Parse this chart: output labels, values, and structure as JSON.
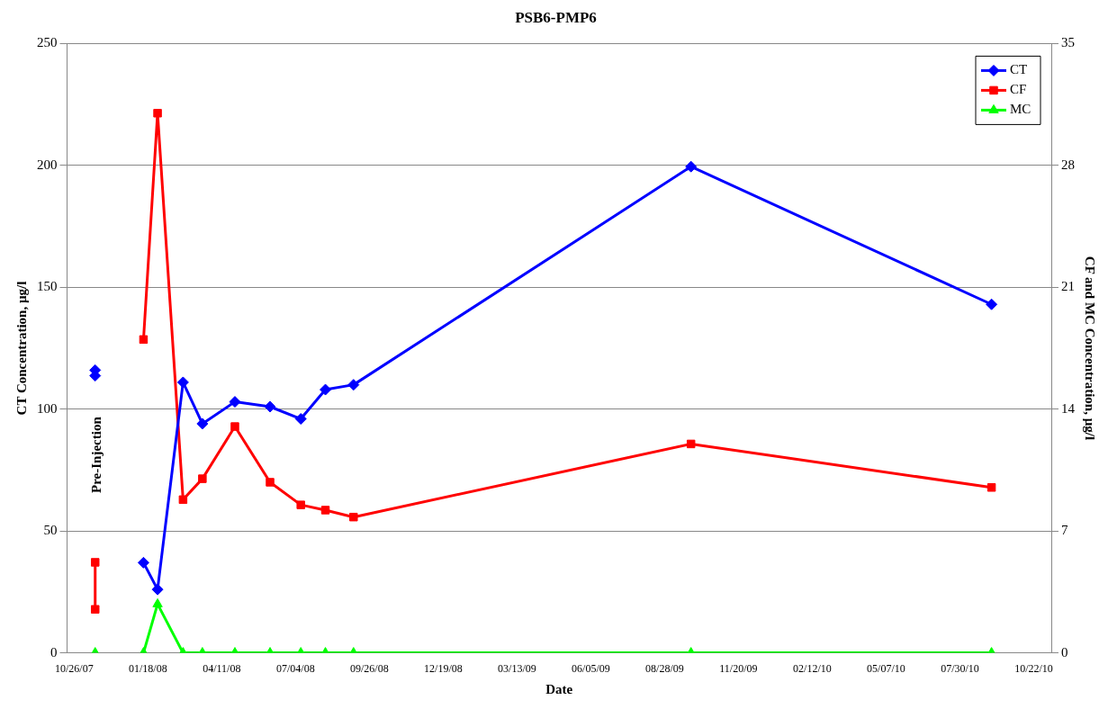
{
  "chart_data": {
    "type": "line",
    "title": "PSB6-PMP6",
    "xlabel": "Date",
    "ylabel": "CT Concentration, µg/l",
    "y2label": "CF and MC Concentration, µg/l",
    "xlim": [
      "2007-10-18",
      "2010-11-11"
    ],
    "xticks": [
      {
        "value": "2007-10-26",
        "label": "10/26/07"
      },
      {
        "value": "2008-01-18",
        "label": "01/18/08"
      },
      {
        "value": "2008-04-11",
        "label": "04/11/08"
      },
      {
        "value": "2008-07-04",
        "label": "07/04/08"
      },
      {
        "value": "2008-09-26",
        "label": "09/26/08"
      },
      {
        "value": "2008-12-19",
        "label": "12/19/08"
      },
      {
        "value": "2009-03-13",
        "label": "03/13/09"
      },
      {
        "value": "2009-06-05",
        "label": "06/05/09"
      },
      {
        "value": "2009-08-28",
        "label": "08/28/09"
      },
      {
        "value": "2009-11-20",
        "label": "11/20/09"
      },
      {
        "value": "2010-02-12",
        "label": "02/12/10"
      },
      {
        "value": "2010-05-07",
        "label": "05/07/10"
      },
      {
        "value": "2010-07-30",
        "label": "07/30/10"
      },
      {
        "value": "2010-10-22",
        "label": "10/22/10"
      }
    ],
    "ylim": [
      0,
      250
    ],
    "yticks": [
      0,
      50,
      100,
      150,
      200,
      250
    ],
    "y2lim": [
      0,
      35
    ],
    "y2ticks": [
      0,
      7,
      14,
      21,
      28,
      35
    ],
    "grid": "y",
    "legend": "top right",
    "line_style": "solid",
    "annotations": [
      "Pre-Injection"
    ],
    "series": [
      {
        "name": "CT",
        "color": "#0000ff",
        "marker": "diamond",
        "x": [
          "2008-01-13",
          "2008-01-29",
          "2008-02-27",
          "2008-03-20",
          "2008-04-26",
          "2008-06-05",
          "2008-07-10",
          "2008-08-07",
          "2008-09-08",
          "2009-09-27",
          "2010-09-04"
        ],
        "values": [
          37,
          26,
          111,
          94,
          103,
          101,
          96,
          108,
          110,
          199.5,
          143
        ]
      },
      {
        "name": "CF",
        "color": "#ff0000",
        "marker": "square",
        "axis": "y2",
        "x": [
          "2008-01-13",
          "2008-01-29",
          "2008-02-27",
          "2008-03-20",
          "2008-04-26",
          "2008-06-05",
          "2008-07-10",
          "2008-08-07",
          "2008-09-08",
          "2009-09-27",
          "2010-09-04"
        ],
        "values": [
          18.0,
          31.0,
          8.8,
          10.0,
          13.0,
          9.8,
          8.5,
          8.2,
          7.8,
          12.0,
          9.5
        ]
      },
      {
        "name": "MC",
        "color": "#00ff00",
        "marker": "triangle",
        "axis": "y2",
        "x": [
          "2008-01-13",
          "2008-01-29",
          "2008-02-27",
          "2008-03-20",
          "2008-04-26",
          "2008-06-05",
          "2008-07-10",
          "2008-08-07",
          "2008-09-08",
          "2009-09-27",
          "2010-09-04"
        ],
        "values": [
          0,
          2.8,
          0,
          0,
          0,
          0,
          0,
          0,
          0,
          0,
          0
        ]
      },
      {
        "type": "scatter",
        "color": "#0000ff",
        "marker": "diamond",
        "x": [
          "2007-11-19",
          "2007-11-19"
        ],
        "values": [
          116,
          113.7
        ]
      },
      {
        "color": "#ff0000",
        "marker": "square",
        "axis": "y2",
        "x": [
          "2007-11-19",
          "2007-11-19"
        ],
        "values": [
          5.2,
          2.5
        ]
      },
      {
        "color": "#00ff00",
        "marker": "triangle",
        "axis": "y2",
        "x": [
          "2007-11-19"
        ],
        "values": [
          0
        ]
      }
    ]
  }
}
